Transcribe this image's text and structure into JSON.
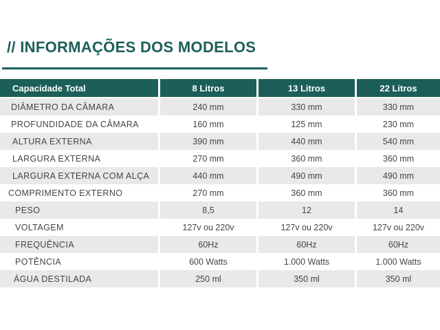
{
  "title": "// INFORMAÇÕES DOS MODELOS",
  "table": {
    "headers": [
      "Capacidade Total",
      "8 Litros",
      "13 Litros",
      "22 Litros"
    ],
    "rows": [
      {
        "label": "DIÂMETRO DA CÂMARA",
        "values": [
          "240 mm",
          "330 mm",
          "330 mm"
        ]
      },
      {
        "label": "PROFUNDIDADE DA CÂMARA",
        "values": [
          "160 mm",
          "125 mm",
          "230 mm"
        ]
      },
      {
        "label": "ALTURA EXTERNA",
        "values": [
          "390 mm",
          "440 mm",
          "540 mm"
        ]
      },
      {
        "label": "LARGURA  EXTERNA",
        "values": [
          "270 mm",
          "360 mm",
          "360 mm"
        ]
      },
      {
        "label": "LARGURA  EXTERNA COM ALÇA",
        "values": [
          "440 mm",
          "490 mm",
          "490 mm"
        ]
      },
      {
        "label": "COMPRIMENTO  EXTERNO",
        "values": [
          "270 mm",
          "360 mm",
          "360 mm"
        ]
      },
      {
        "label": "PESO",
        "values": [
          "8,5",
          "12",
          "14"
        ]
      },
      {
        "label": "VOLTAGEM",
        "values": [
          "127v  ou 220v",
          "127v ou 220v",
          "127v ou 220v"
        ]
      },
      {
        "label": "FREQUÊNCIA",
        "values": [
          "60Hz",
          "60Hz",
          "60Hz"
        ]
      },
      {
        "label": "POTÊNCIA",
        "values": [
          "600  Watts",
          "1.000  Watts",
          "1.000 Watts"
        ]
      },
      {
        "label": "ÁGUA DESTILADA",
        "values": [
          "250 ml",
          "350 ml",
          "350 ml"
        ]
      }
    ]
  },
  "colors": {
    "accent": "#1c5f58",
    "row_shade": "#e9e9e9"
  }
}
